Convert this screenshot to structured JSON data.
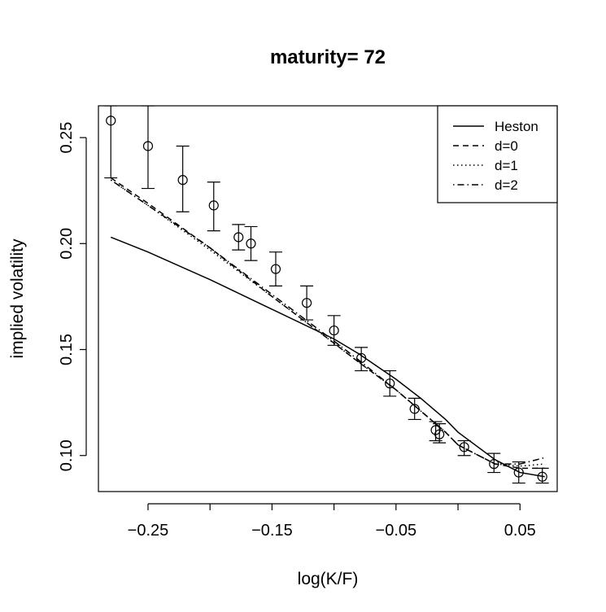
{
  "chart_data": {
    "type": "line",
    "title": "maturity= 72",
    "xlabel": "log(K/F)",
    "ylabel": "implied volatility",
    "xlim": [
      -0.29,
      0.08
    ],
    "ylim": [
      0.083,
      0.265
    ],
    "xticks": [
      -0.25,
      -0.2,
      -0.15,
      -0.1,
      -0.05,
      0.0,
      0.05
    ],
    "xtick_labels": [
      "−0.25",
      "",
      "−0.15",
      "",
      "−0.05",
      "",
      "0.05"
    ],
    "yticks": [
      0.1,
      0.15,
      0.2,
      0.25
    ],
    "ytick_labels": [
      "0.10",
      "0.15",
      "0.20",
      "0.25"
    ],
    "grid": false,
    "legend_position": "top-right",
    "series": [
      {
        "name": "Heston",
        "style": "solid",
        "x": [
          -0.28,
          -0.25,
          -0.2,
          -0.15,
          -0.1,
          -0.08,
          -0.05,
          -0.03,
          -0.01,
          0.0,
          0.03,
          0.05,
          0.07
        ],
        "y": [
          0.203,
          0.196,
          0.183,
          0.169,
          0.155,
          0.148,
          0.136,
          0.127,
          0.117,
          0.111,
          0.098,
          0.092,
          0.09
        ]
      },
      {
        "name": "d=0",
        "style": "dashed",
        "x": [
          -0.28,
          -0.25,
          -0.2,
          -0.15,
          -0.1,
          -0.08,
          -0.05,
          -0.03,
          -0.01,
          0.0,
          0.03,
          0.05,
          0.07
        ],
        "y": [
          0.231,
          0.219,
          0.198,
          0.175,
          0.153,
          0.144,
          0.131,
          0.121,
          0.111,
          0.105,
          0.096,
          0.094,
          0.094
        ]
      },
      {
        "name": "d=1",
        "style": "dotted",
        "x": [
          -0.28,
          -0.25,
          -0.2,
          -0.15,
          -0.1,
          -0.08,
          -0.05,
          -0.03,
          -0.01,
          0.0,
          0.03,
          0.05,
          0.07
        ],
        "y": [
          0.23,
          0.218,
          0.197,
          0.175,
          0.153,
          0.144,
          0.131,
          0.121,
          0.111,
          0.105,
          0.096,
          0.095,
          0.096
        ]
      },
      {
        "name": "d=2",
        "style": "dashdot",
        "x": [
          -0.28,
          -0.25,
          -0.2,
          -0.15,
          -0.1,
          -0.08,
          -0.05,
          -0.03,
          -0.01,
          0.0,
          0.03,
          0.05,
          0.07
        ],
        "y": [
          0.23,
          0.218,
          0.198,
          0.176,
          0.154,
          0.145,
          0.131,
          0.121,
          0.111,
          0.105,
          0.096,
          0.096,
          0.099
        ]
      }
    ],
    "observations": {
      "marker": "circle",
      "x": [
        -0.28,
        -0.25,
        -0.222,
        -0.197,
        -0.177,
        -0.167,
        -0.147,
        -0.122,
        -0.1,
        -0.078,
        -0.055,
        -0.035,
        -0.018,
        -0.015,
        0.005,
        0.029,
        0.049,
        0.068
      ],
      "y": [
        0.258,
        0.246,
        0.23,
        0.218,
        0.203,
        0.2,
        0.188,
        0.172,
        0.159,
        0.146,
        0.134,
        0.122,
        0.112,
        0.11,
        0.104,
        0.096,
        0.092,
        0.09
      ],
      "err_low": [
        0.231,
        0.226,
        0.215,
        0.206,
        0.197,
        0.192,
        0.18,
        0.164,
        0.152,
        0.14,
        0.128,
        0.117,
        0.107,
        0.106,
        0.1,
        0.092,
        0.087,
        0.087
      ],
      "err_high": [
        0.265,
        0.265,
        0.246,
        0.229,
        0.209,
        0.208,
        0.196,
        0.18,
        0.166,
        0.151,
        0.14,
        0.127,
        0.116,
        0.115,
        0.107,
        0.101,
        0.097,
        0.094
      ]
    }
  }
}
